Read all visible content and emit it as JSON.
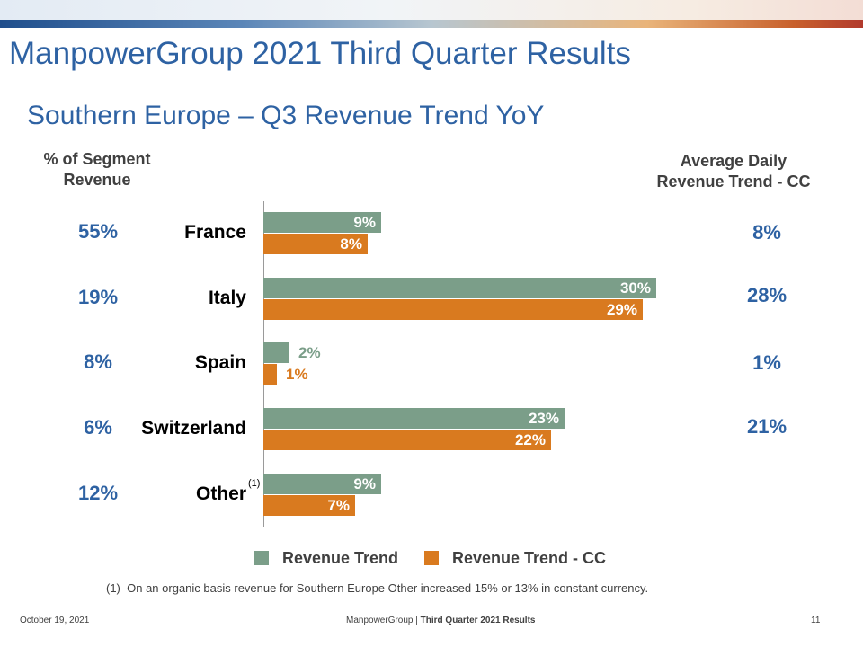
{
  "slide": {
    "title": "ManpowerGroup 2021 Third Quarter Results",
    "subtitle": "Southern Europe – Q3 Revenue Trend YoY",
    "left_column_header_line1": "% of Segment",
    "left_column_header_line2": "Revenue",
    "right_column_header_line1": "Average Daily",
    "right_column_header_line2": "Revenue Trend - CC",
    "footnote_marker": "(1)",
    "footnote_label": "(1)",
    "footnote_text": "On an organic basis revenue for Southern Europe Other increased 15% or 13% in constant currency.",
    "footer_date": "October 19, 2021",
    "footer_company": "ManpowerGroup",
    "footer_separator": "|",
    "footer_report": "Third Quarter 2021 Results",
    "page_number": "11"
  },
  "chart_data": {
    "type": "bar",
    "orientation": "horizontal",
    "categories": [
      "France",
      "Italy",
      "Spain",
      "Switzerland",
      "Other"
    ],
    "segment_revenue_pct_labels": [
      "55%",
      "19%",
      "8%",
      "6%",
      "12%"
    ],
    "adr_trend_cc_labels": [
      "8%",
      "28%",
      "1%",
      "21%",
      ""
    ],
    "series": [
      {
        "name": "Revenue Trend",
        "values": [
          9,
          30,
          2,
          23,
          9
        ],
        "labels": [
          "9%",
          "30%",
          "2%",
          "23%",
          "9%"
        ],
        "color": "#7b9e89"
      },
      {
        "name": "Revenue Trend - CC",
        "values": [
          8,
          29,
          1,
          22,
          7
        ],
        "labels": [
          "8%",
          "29%",
          "1%",
          "22%",
          "7%"
        ],
        "color": "#d97a1f"
      }
    ],
    "xlim": [
      0,
      33
    ],
    "grid": false,
    "legend": "bottom",
    "colors": {
      "title": "#2e62a3",
      "label_inside": "#ffffff"
    }
  }
}
